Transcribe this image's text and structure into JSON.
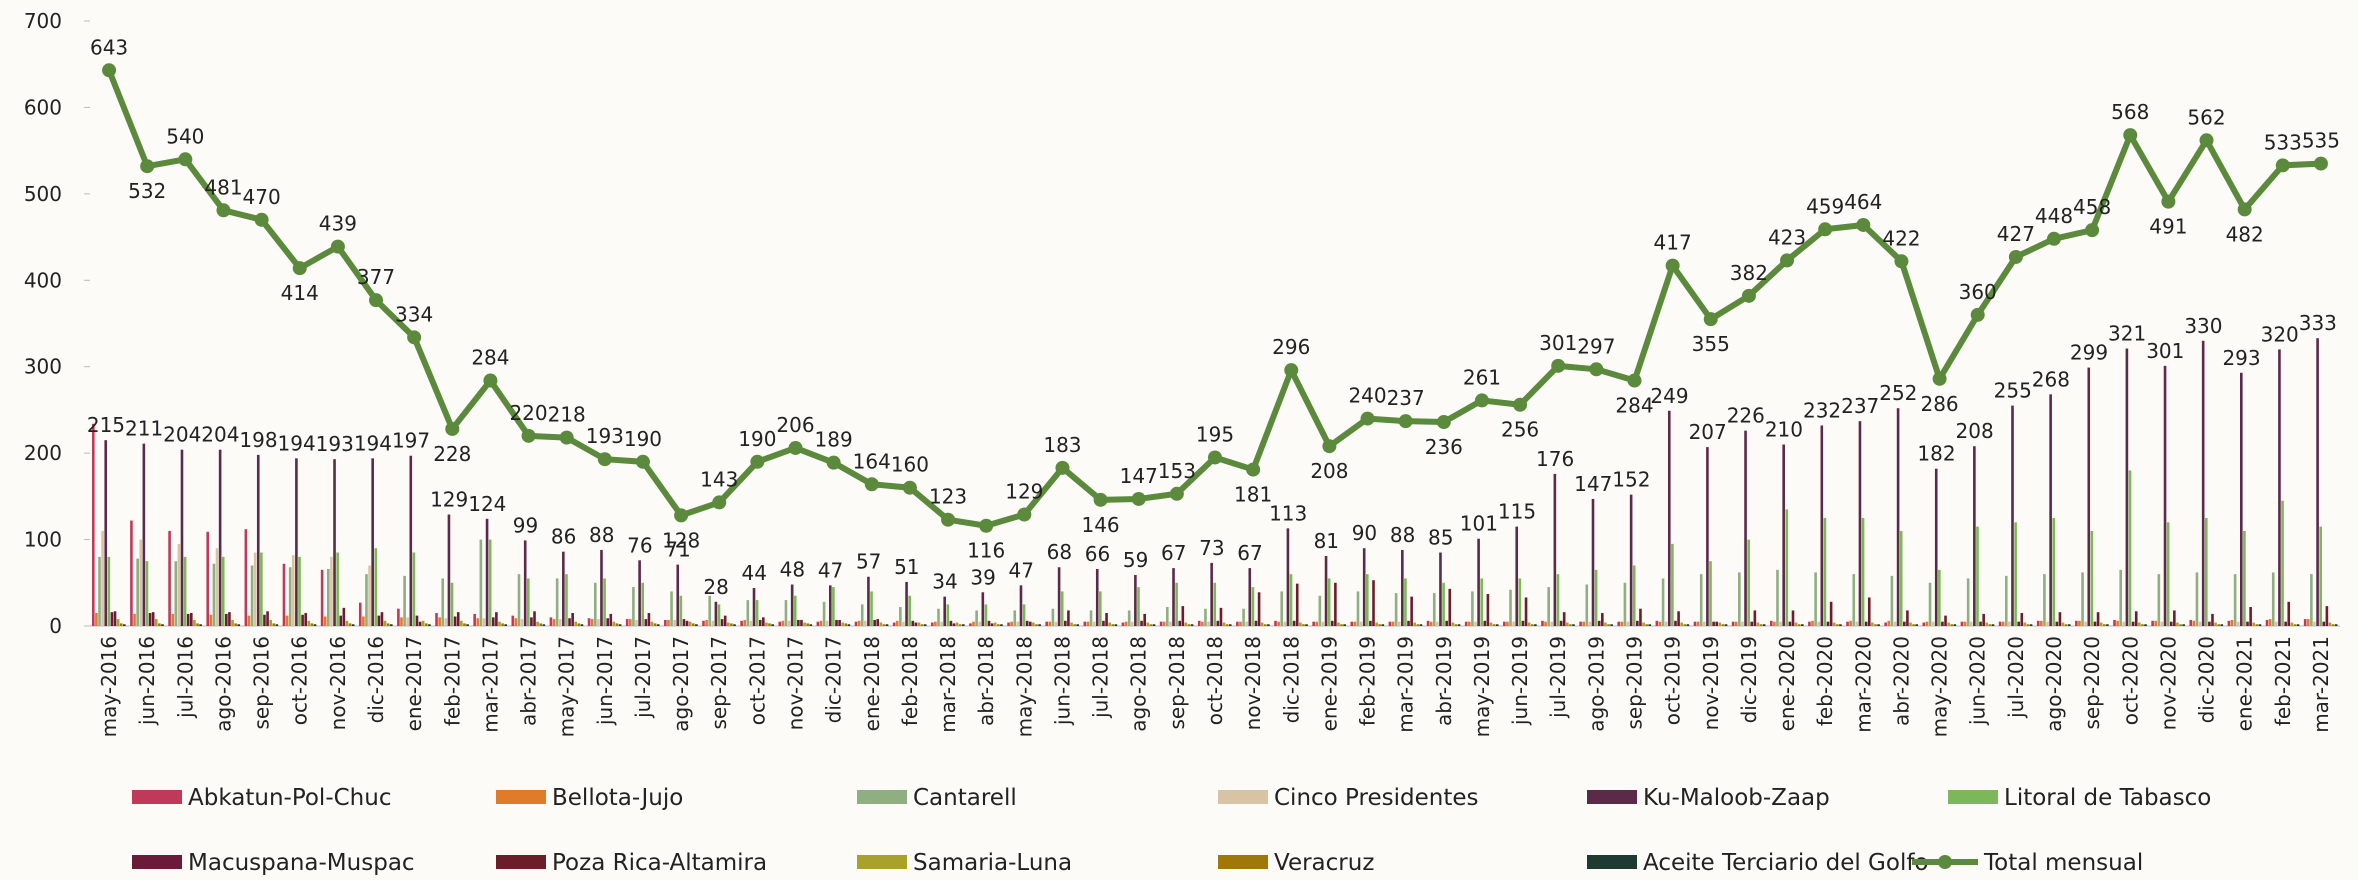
{
  "chart_data": {
    "type": "bar_line",
    "categories": [
      "may-2016",
      "jun-2016",
      "jul-2016",
      "ago-2016",
      "sep-2016",
      "oct-2016",
      "nov-2016",
      "dic-2016",
      "ene-2017",
      "feb-2017",
      "mar-2017",
      "abr-2017",
      "may-2017",
      "jun-2017",
      "jul-2017",
      "ago-2017",
      "sep-2017",
      "oct-2017",
      "nov-2017",
      "dic-2017",
      "ene-2018",
      "feb-2018",
      "mar-2018",
      "abr-2018",
      "may-2018",
      "jun-2018",
      "jul-2018",
      "ago-2018",
      "sep-2018",
      "oct-2018",
      "nov-2018",
      "dic-2018",
      "ene-2019",
      "feb-2019",
      "mar-2019",
      "abr-2019",
      "may-2019",
      "jun-2019",
      "jul-2019",
      "ago-2019",
      "sep-2019",
      "oct-2019",
      "nov-2019",
      "dic-2019",
      "ene-2020",
      "feb-2020",
      "mar-2020",
      "abr-2020",
      "may-2020",
      "jun-2020",
      "jul-2020",
      "ago-2020",
      "sep-2020",
      "oct-2020",
      "nov-2020",
      "dic-2020",
      "ene-2021",
      "feb-2021",
      "mar-2021"
    ],
    "ylim": [
      0,
      700
    ],
    "yticks": [
      0,
      100,
      200,
      300,
      400,
      500,
      600,
      700
    ],
    "series": [
      {
        "name": "Abkatun-Pol-Chuc",
        "color": "#c0395a",
        "values": [
          234,
          122,
          110,
          109,
          112,
          72,
          65,
          27,
          20,
          15,
          14,
          12,
          10,
          9,
          8,
          7,
          6,
          6,
          5,
          5,
          5,
          4,
          4,
          3,
          4,
          5,
          5,
          4,
          5,
          6,
          5,
          6,
          5,
          5,
          5,
          6,
          5,
          5,
          6,
          5,
          5,
          6,
          5,
          5,
          6,
          5,
          5,
          4,
          4,
          5,
          5,
          6,
          6,
          7,
          6,
          7,
          6,
          7,
          8
        ]
      },
      {
        "name": "Bellota-Jujo",
        "color": "#e07b2a",
        "values": [
          15,
          14,
          14,
          13,
          12,
          12,
          11,
          11,
          10,
          10,
          9,
          9,
          8,
          8,
          8,
          7,
          7,
          7,
          6,
          6,
          6,
          6,
          5,
          5,
          5,
          5,
          5,
          5,
          5,
          5,
          5,
          5,
          5,
          5,
          5,
          5,
          5,
          5,
          5,
          5,
          5,
          5,
          5,
          5,
          5,
          6,
          6,
          6,
          5,
          5,
          5,
          6,
          6,
          6,
          6,
          6,
          7,
          8,
          8
        ]
      },
      {
        "name": "Cantarell",
        "color": "#8fae82",
        "values": [
          80,
          78,
          75,
          72,
          70,
          68,
          66,
          60,
          58,
          55,
          100,
          60,
          55,
          50,
          45,
          40,
          35,
          30,
          30,
          28,
          25,
          22,
          20,
          18,
          18,
          20,
          18,
          18,
          22,
          20,
          20,
          40,
          35,
          40,
          38,
          38,
          40,
          42,
          45,
          48,
          50,
          55,
          60,
          62,
          65,
          62,
          60,
          58,
          50,
          55,
          58,
          60,
          62,
          65,
          60,
          62,
          60,
          62,
          60
        ]
      },
      {
        "name": "Cinco Presidentes",
        "color": "#d9c3a5",
        "values": [
          110,
          100,
          95,
          90,
          85,
          82,
          80,
          70,
          10,
          9,
          9,
          8,
          8,
          8,
          7,
          7,
          6,
          6,
          6,
          6,
          6,
          5,
          5,
          5,
          5,
          5,
          5,
          5,
          5,
          5,
          5,
          5,
          5,
          5,
          5,
          5,
          5,
          5,
          5,
          5,
          5,
          5,
          5,
          5,
          5,
          5,
          5,
          5,
          5,
          5,
          5,
          5,
          5,
          5,
          5,
          5,
          5,
          5,
          5
        ]
      },
      {
        "name": "Ku-Maloob-Zaap",
        "color": "#5a2a48",
        "show_labels": true,
        "values": [
          215,
          211,
          204,
          204,
          198,
          194,
          193,
          194,
          197,
          129,
          124,
          99,
          86,
          88,
          76,
          71,
          28,
          44,
          48,
          47,
          57,
          51,
          34,
          39,
          47,
          68,
          66,
          59,
          67,
          73,
          67,
          113,
          81,
          90,
          88,
          85,
          101,
          115,
          176,
          147,
          152,
          249,
          207,
          226,
          210,
          232,
          237,
          252,
          182,
          208,
          255,
          268,
          299,
          321,
          301,
          330,
          293,
          320,
          333
        ]
      },
      {
        "name": "Litoral de Tabasco",
        "color": "#7cb85a",
        "values": [
          80,
          75,
          80,
          80,
          85,
          80,
          85,
          90,
          85,
          50,
          100,
          55,
          60,
          55,
          50,
          35,
          25,
          30,
          35,
          45,
          40,
          35,
          25,
          25,
          25,
          40,
          40,
          45,
          50,
          50,
          45,
          60,
          55,
          60,
          55,
          50,
          55,
          55,
          60,
          65,
          70,
          95,
          75,
          100,
          135,
          125,
          125,
          110,
          65,
          115,
          120,
          125,
          110,
          180,
          120,
          125,
          110,
          145,
          115
        ]
      },
      {
        "name": "Macuspana-Muspac",
        "color": "#6b1a3a",
        "values": [
          16,
          15,
          14,
          14,
          13,
          13,
          12,
          12,
          12,
          11,
          10,
          10,
          9,
          9,
          8,
          8,
          8,
          7,
          7,
          7,
          7,
          6,
          6,
          6,
          6,
          6,
          6,
          6,
          6,
          6,
          6,
          6,
          6,
          6,
          6,
          6,
          6,
          6,
          6,
          6,
          6,
          6,
          5,
          5,
          5,
          5,
          5,
          5,
          5,
          5,
          5,
          5,
          5,
          5,
          5,
          5,
          5,
          5,
          5
        ]
      },
      {
        "name": "Poza Rica-Altamira",
        "color": "#6b1e2a",
        "values": [
          17,
          16,
          15,
          16,
          17,
          15,
          21,
          16,
          5,
          16,
          16,
          17,
          15,
          14,
          15,
          6,
          12,
          10,
          7,
          7,
          8,
          4,
          3,
          3,
          5,
          18,
          15,
          14,
          23,
          21,
          39,
          49,
          50,
          53,
          34,
          43,
          37,
          33,
          16,
          15,
          20,
          17,
          5,
          18,
          18,
          28,
          33,
          18,
          12,
          14,
          15,
          16,
          16,
          17,
          18,
          14,
          22,
          28,
          23
        ]
      },
      {
        "name": "Samaria-Luna",
        "color": "#a8a22a",
        "values": [
          8,
          8,
          7,
          7,
          7,
          6,
          6,
          6,
          6,
          6,
          5,
          5,
          5,
          5,
          5,
          5,
          4,
          4,
          4,
          4,
          4,
          4,
          4,
          4,
          4,
          4,
          4,
          4,
          4,
          4,
          4,
          4,
          4,
          4,
          4,
          4,
          4,
          4,
          4,
          4,
          4,
          4,
          4,
          4,
          4,
          4,
          4,
          4,
          4,
          4,
          4,
          4,
          4,
          4,
          4,
          4,
          4,
          4,
          4
        ]
      },
      {
        "name": "Veracruz",
        "color": "#a0780a",
        "values": [
          3,
          3,
          3,
          3,
          3,
          3,
          3,
          3,
          3,
          3,
          3,
          3,
          3,
          3,
          3,
          3,
          3,
          3,
          3,
          3,
          2,
          2,
          2,
          2,
          2,
          2,
          2,
          2,
          2,
          2,
          2,
          2,
          2,
          2,
          2,
          2,
          2,
          2,
          2,
          2,
          2,
          2,
          2,
          2,
          2,
          2,
          2,
          2,
          2,
          2,
          2,
          2,
          2,
          2,
          2,
          2,
          2,
          2,
          2
        ]
      },
      {
        "name": "Aceite Terciario del Golfo",
        "color": "#1e3a33",
        "values": [
          2,
          2,
          2,
          2,
          2,
          2,
          2,
          2,
          2,
          2,
          2,
          2,
          2,
          2,
          2,
          2,
          2,
          2,
          2,
          2,
          2,
          2,
          2,
          2,
          2,
          2,
          2,
          2,
          2,
          2,
          2,
          2,
          2,
          2,
          2,
          2,
          2,
          2,
          2,
          2,
          2,
          2,
          2,
          2,
          2,
          2,
          2,
          2,
          2,
          2,
          2,
          2,
          2,
          2,
          2,
          2,
          2,
          2,
          2
        ]
      },
      {
        "name": "Total mensual",
        "color": "#5b8a3c",
        "line": true,
        "show_labels": true,
        "values": [
          643,
          532,
          540,
          481,
          470,
          414,
          439,
          377,
          334,
          228,
          284,
          220,
          218,
          193,
          190,
          128,
          143,
          190,
          206,
          189,
          164,
          160,
          123,
          116,
          129,
          183,
          146,
          147,
          153,
          195,
          181,
          296,
          208,
          240,
          237,
          236,
          261,
          256,
          301,
          297,
          284,
          417,
          355,
          382,
          423,
          459,
          464,
          422,
          286,
          360,
          427,
          448,
          458,
          568,
          491,
          562,
          482,
          533,
          535
        ]
      }
    ]
  }
}
